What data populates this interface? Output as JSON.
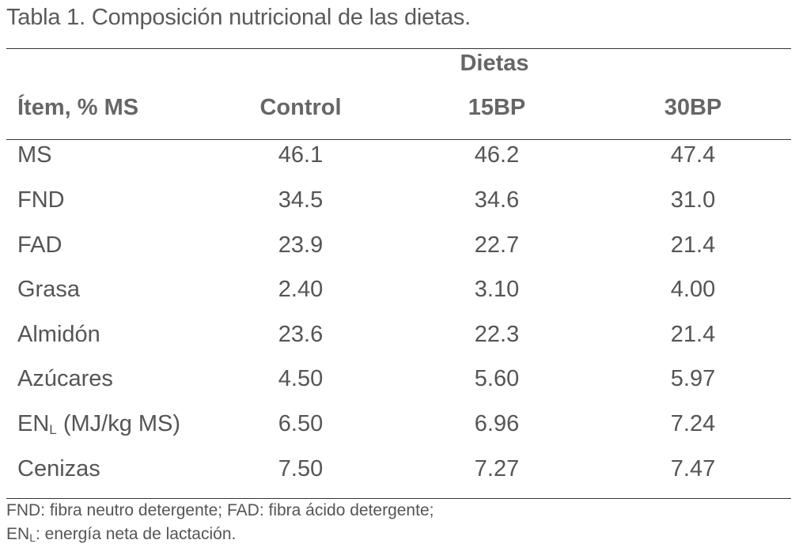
{
  "caption": "Tabla 1. Composición nutricional de las dietas.",
  "group_header": "Dietas",
  "columns": {
    "item": "Ítem, % MS",
    "control": "Control",
    "bp15": "15BP",
    "bp30": "30BP"
  },
  "rows": [
    {
      "label": "MS",
      "control": "46.1",
      "bp15": "46.2",
      "bp30": "47.4"
    },
    {
      "label": "FND",
      "control": "34.5",
      "bp15": "34.6",
      "bp30": "31.0"
    },
    {
      "label": "FAD",
      "control": "23.9",
      "bp15": "22.7",
      "bp30": "21.4"
    },
    {
      "label": "Grasa",
      "control": "2.40",
      "bp15": "3.10",
      "bp30": "4.00"
    },
    {
      "label": "Almidón",
      "control": "23.6",
      "bp15": "22.3",
      "bp30": "21.4"
    },
    {
      "label": "Azúcares",
      "control": "4.50",
      "bp15": "5.60",
      "bp30": "5.97"
    },
    {
      "label_main": "EN",
      "label_sub": "L",
      "label_rest": " (MJ/kg MS)",
      "control": "6.50",
      "bp15": "6.96",
      "bp30": "7.24"
    },
    {
      "label": "Cenizas",
      "control": "7.50",
      "bp15": "7.27",
      "bp30": "7.47"
    }
  ],
  "footnotes": {
    "line1": "FND: fibra neutro detergente; FAD: fibra ácido detergente;",
    "line2_main": "EN",
    "line2_sub": "L",
    "line2_rest": ": energía neta de lactación."
  }
}
